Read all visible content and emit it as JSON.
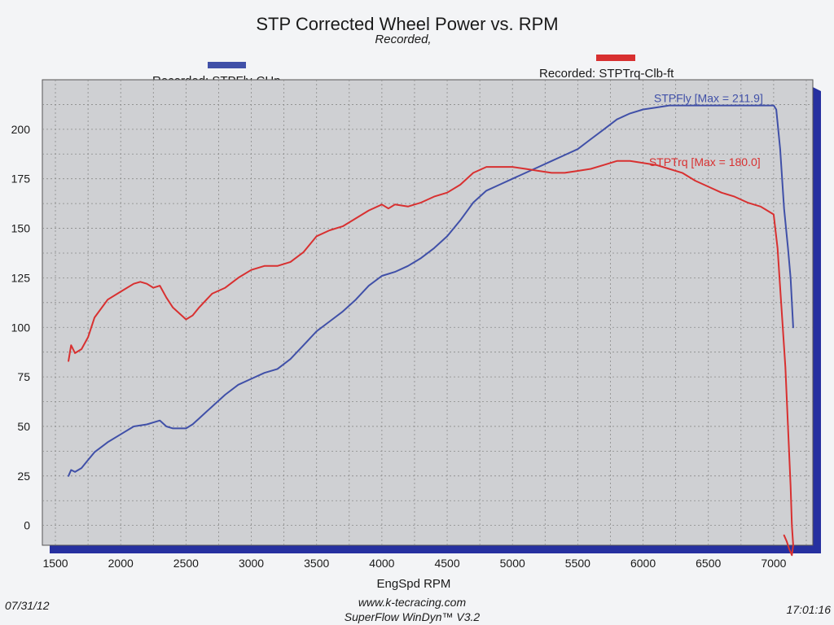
{
  "chart_data": {
    "type": "line",
    "title": "STP Corrected Wheel Power vs. RPM",
    "subtitle": "Recorded,",
    "xlabel": "EngSpd RPM",
    "ylabel": "",
    "x_ticks": [
      "1500",
      "2000",
      "2500",
      "3000",
      "3500",
      "4000",
      "4500",
      "5000",
      "5500",
      "6000",
      "6500",
      "7000"
    ],
    "y_ticks": [
      "0",
      "25",
      "50",
      "75",
      "100",
      "125",
      "150",
      "175",
      "200"
    ],
    "xlim": [
      1400,
      7300
    ],
    "ylim": [
      -10,
      225
    ],
    "grid": true,
    "legend": [
      {
        "label": "Recorded: STPFly-CHp",
        "color": "#4050a8"
      },
      {
        "label": "Recorded: STPTrq-Clb-ft",
        "color": "#d83030"
      }
    ],
    "series": [
      {
        "name": "STPFly",
        "color": "#4050a8",
        "annotation": "STPFly [Max = 211.9]",
        "x": [
          1600,
          1620,
          1650,
          1700,
          1750,
          1800,
          1900,
          2000,
          2100,
          2200,
          2300,
          2350,
          2400,
          2500,
          2550,
          2600,
          2700,
          2800,
          2900,
          3000,
          3100,
          3200,
          3300,
          3400,
          3500,
          3600,
          3700,
          3800,
          3900,
          4000,
          4100,
          4200,
          4300,
          4400,
          4500,
          4600,
          4700,
          4800,
          4900,
          5000,
          5100,
          5200,
          5300,
          5400,
          5500,
          5600,
          5700,
          5800,
          5900,
          6000,
          6100,
          6200,
          6300,
          6400,
          6500,
          6600,
          6700,
          6800,
          6900,
          7000,
          7020,
          7050,
          7080,
          7110,
          7130,
          7150
        ],
        "y": [
          25,
          28,
          27,
          29,
          33,
          37,
          42,
          46,
          50,
          51,
          53,
          50,
          49,
          49,
          51,
          54,
          60,
          66,
          71,
          74,
          77,
          79,
          84,
          91,
          98,
          103,
          108,
          114,
          121,
          126,
          128,
          131,
          135,
          140,
          146,
          154,
          163,
          169,
          172,
          175,
          178,
          181,
          184,
          187,
          190,
          195,
          200,
          205,
          208,
          210,
          211,
          212,
          212,
          212,
          212,
          212,
          212,
          212,
          212,
          212,
          210,
          190,
          160,
          140,
          125,
          100
        ]
      },
      {
        "name": "STPTrq",
        "color": "#d83030",
        "annotation": "STPTrq [Max = 180.0]",
        "x": [
          1600,
          1620,
          1650,
          1700,
          1750,
          1800,
          1900,
          2000,
          2100,
          2150,
          2200,
          2250,
          2300,
          2350,
          2400,
          2500,
          2550,
          2600,
          2700,
          2800,
          2900,
          3000,
          3100,
          3200,
          3300,
          3400,
          3500,
          3600,
          3700,
          3800,
          3900,
          4000,
          4050,
          4100,
          4200,
          4300,
          4400,
          4500,
          4600,
          4700,
          4800,
          4900,
          5000,
          5100,
          5200,
          5300,
          5400,
          5500,
          5600,
          5700,
          5800,
          5900,
          6000,
          6100,
          6200,
          6300,
          6400,
          6500,
          6600,
          6700,
          6800,
          6900,
          7000,
          7030,
          7060,
          7090,
          7110,
          7130,
          7140,
          7150,
          7140,
          7120,
          7100,
          7080
        ],
        "y": [
          83,
          91,
          87,
          89,
          95,
          105,
          114,
          118,
          122,
          123,
          122,
          120,
          121,
          115,
          110,
          104,
          106,
          110,
          117,
          120,
          125,
          129,
          131,
          131,
          133,
          138,
          146,
          149,
          151,
          155,
          159,
          162,
          160,
          162,
          161,
          163,
          166,
          168,
          172,
          178,
          181,
          181,
          181,
          180,
          179,
          178,
          178,
          179,
          180,
          182,
          184,
          184,
          183,
          182,
          180,
          178,
          174,
          171,
          168,
          166,
          163,
          161,
          157,
          140,
          110,
          80,
          50,
          20,
          0,
          -10,
          -15,
          -12,
          -8,
          -5
        ]
      }
    ]
  },
  "footer": {
    "date": "07/31/12",
    "website": "www.k-tecracing.com",
    "software": "SuperFlow WinDyn™ V3.2",
    "time": "17:01:16"
  }
}
